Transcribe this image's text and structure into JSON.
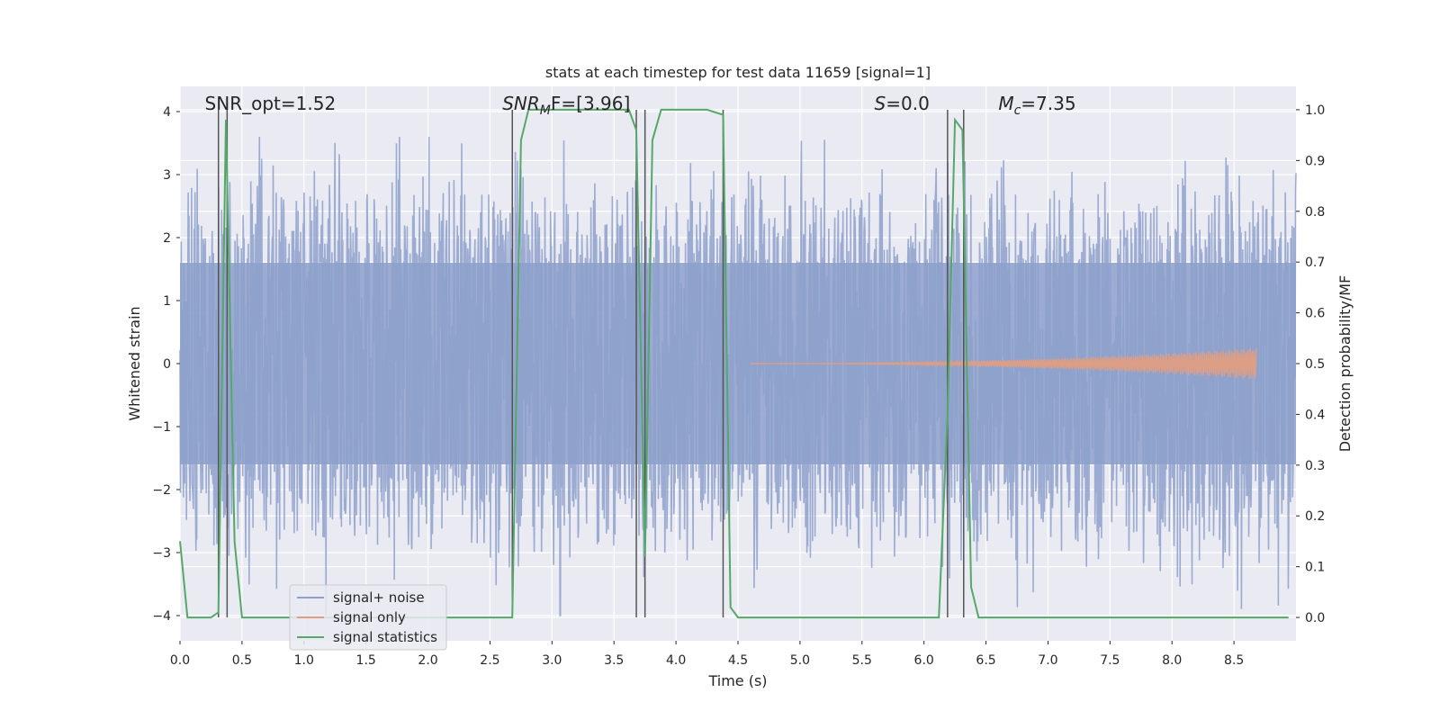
{
  "chart_data": {
    "type": "line",
    "title": "stats at each timestep for test data 11659 [signal=1]",
    "xlabel": "Time (s)",
    "ylabel": "Whitened strain",
    "y2label": "Detection probability/MF",
    "xlim": [
      0.0,
      9.0
    ],
    "ylim": [
      -4.4,
      4.4
    ],
    "y2lim": [
      -0.046,
      1.046
    ],
    "xticks": [
      0.0,
      0.5,
      1.0,
      1.5,
      2.0,
      2.5,
      3.0,
      3.5,
      4.0,
      4.5,
      5.0,
      5.5,
      6.0,
      6.5,
      7.0,
      7.5,
      8.0,
      8.5
    ],
    "yticks": [
      -4,
      -3,
      -2,
      -1,
      0,
      1,
      2,
      3,
      4
    ],
    "y2ticks": [
      0.0,
      0.1,
      0.2,
      0.3,
      0.4,
      0.5,
      0.6,
      0.7,
      0.8,
      0.9,
      1.0
    ],
    "grid": true,
    "legend_position": "lower-left",
    "annotations": [
      {
        "text": "SNR_opt=1.52",
        "x": 0.2,
        "y": 4.0
      },
      {
        "text": "SNR",
        "sub": "M",
        "tail": "F=[3.96]",
        "x": 2.6,
        "y": 4.0,
        "italic": true
      },
      {
        "text": "S",
        "sub": "",
        "tail": "=0.0",
        "x": 5.6,
        "y": 4.0,
        "italic": true
      },
      {
        "text": "M",
        "sub": "c",
        "tail": "=7.35",
        "x": 6.6,
        "y": 4.0,
        "italic": true
      }
    ],
    "vlines": {
      "x": [
        0.31,
        0.38,
        2.68,
        3.68,
        3.75,
        4.38,
        6.19,
        6.32
      ],
      "ymin": 0.0,
      "ymax": 1.0,
      "axis": "y2",
      "color": "#555555"
    },
    "series": [
      {
        "name": "signal+ noise",
        "kind": "noise",
        "color": "#8da0cb",
        "x_range": [
          0.0,
          9.0
        ],
        "core_amplitude": 1.6,
        "peak_range": [
          -4.0,
          3.6
        ],
        "axis": "y"
      },
      {
        "name": "signal only",
        "kind": "chirp",
        "color": "#dd9e86",
        "x_range": [
          4.6,
          8.68
        ],
        "amplitude_end": 0.25,
        "axis": "y"
      },
      {
        "name": "signal statistics",
        "kind": "line",
        "color": "#55a868",
        "axis": "y2",
        "x": [
          0.0,
          0.06,
          0.12,
          0.25,
          0.31,
          0.37,
          0.44,
          0.5,
          1.0,
          2.0,
          2.68,
          2.75,
          2.81,
          2.88,
          3.25,
          3.62,
          3.68,
          3.75,
          3.81,
          3.88,
          4.0,
          4.25,
          4.38,
          4.44,
          4.5,
          5.0,
          5.5,
          6.0,
          6.12,
          6.19,
          6.25,
          6.31,
          6.38,
          6.44,
          7.0,
          8.0,
          8.94
        ],
        "y": [
          0.15,
          0.0,
          0.0,
          0.0,
          0.01,
          0.98,
          0.15,
          0.0,
          0.0,
          0.0,
          0.0,
          0.94,
          1.0,
          1.0,
          1.0,
          1.0,
          0.96,
          0.12,
          0.94,
          1.0,
          1.0,
          1.0,
          0.99,
          0.02,
          0.0,
          0.0,
          0.0,
          0.0,
          0.0,
          0.4,
          0.98,
          0.96,
          0.06,
          0.0,
          0.0,
          0.0,
          0.0
        ]
      }
    ]
  }
}
